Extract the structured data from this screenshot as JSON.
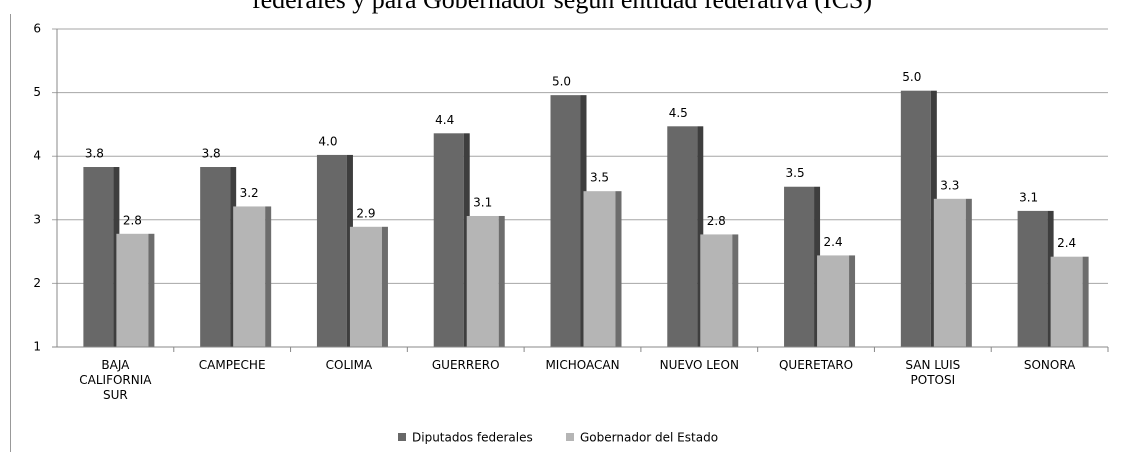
{
  "chart_data": {
    "type": "bar",
    "title": "federales y para Gobernador según entidad federativa (ICS)",
    "categories": [
      "BAJA CALIFORNIA SUR",
      "CAMPECHE",
      "COLIMA",
      "GUERRERO",
      "MICHOACAN",
      "NUEVO  LEON",
      "QUERETARO",
      "SAN LUIS POTOSI",
      "SONORA"
    ],
    "series": [
      {
        "name": "Diputados federales",
        "color": "#686868",
        "values": [
          3.83,
          3.83,
          4.02,
          4.36,
          4.96,
          4.47,
          3.52,
          5.03,
          3.14
        ],
        "value_labels": [
          "3.8",
          "3.8",
          "4.0",
          "4.4",
          "5.0",
          "4.5",
          "3.5",
          "5.0",
          "3.1"
        ]
      },
      {
        "name": "Gobernador del Estado",
        "color": "#b5b5b5",
        "values": [
          2.78,
          3.21,
          2.89,
          3.06,
          3.45,
          2.77,
          2.44,
          3.33,
          2.42
        ],
        "value_labels": [
          "2.8",
          "3.2",
          "2.9",
          "3.1",
          "3.5",
          "2.8",
          "2.4",
          "3.3",
          "2.4"
        ]
      }
    ],
    "ylim": [
      1,
      6
    ],
    "yticks": [
      1,
      2,
      3,
      4,
      5,
      6
    ],
    "grid": true,
    "legend": "bottom"
  }
}
